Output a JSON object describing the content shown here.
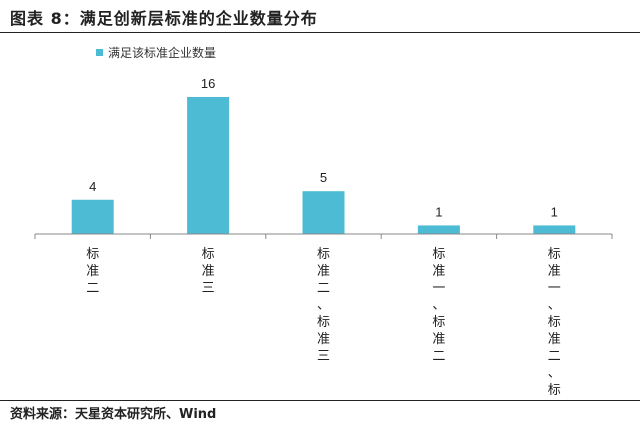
{
  "header": {
    "title": "图表 8：满足创新层标准的企业数量分布"
  },
  "footer": {
    "source": "资料来源：天星资本研究所、Wind"
  },
  "colors": {
    "bar": "#4dbbd4",
    "axis": "#888888"
  },
  "chart_data": {
    "type": "bar",
    "categories": [
      "标准二",
      "标准三",
      "标准二、标准三",
      "标准一、标准二",
      "标准一、标准二、标准三"
    ],
    "series": [
      {
        "name": "满足该标准企业数量",
        "values": [
          4,
          16,
          5,
          1,
          1
        ]
      }
    ],
    "ylim": [
      0,
      16
    ],
    "legend_position": "top-left",
    "grid": false,
    "data_labels": true
  }
}
